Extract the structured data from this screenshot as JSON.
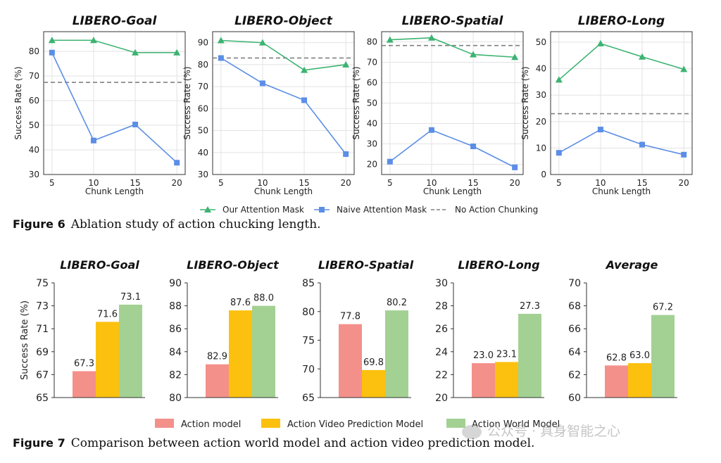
{
  "fig6": {
    "label": "Figure 6",
    "caption": "Ablation study of action chucking length.",
    "legend": [
      {
        "name": "Our Attention Mask",
        "color": "#3cb371",
        "marker": "triangle"
      },
      {
        "name": "Naive Attention Mask",
        "color": "#5b8ee6",
        "marker": "square"
      },
      {
        "name": "No Action Chunking",
        "color": "#808080",
        "marker": "dashed"
      }
    ]
  },
  "fig7": {
    "label": "Figure 7",
    "caption": "Comparison between action world model and action video prediction model.",
    "legend": [
      {
        "name": "Action model",
        "color": "#f4908a"
      },
      {
        "name": "Action Video Prediction Model",
        "color": "#fcc00f"
      },
      {
        "name": "Action World Model",
        "color": "#a3d194"
      }
    ]
  },
  "watermark": "公众号 · 具身智能之心",
  "chart_data": [
    {
      "type": "line",
      "title": "LIBERO-Goal",
      "xlabel": "Chunk Length",
      "ylabel": "Success Rate (%)",
      "x": [
        5,
        10,
        15,
        20
      ],
      "ylim": [
        30,
        88
      ],
      "yticks": [
        30,
        40,
        50,
        60,
        70,
        80
      ],
      "series": [
        {
          "name": "Our Attention Mask",
          "values": [
            84.5,
            84.5,
            79.5,
            79.5
          ]
        },
        {
          "name": "Naive Attention Mask",
          "values": [
            79.5,
            43.8,
            50.3,
            34.8
          ]
        }
      ],
      "baseline": 67.4
    },
    {
      "type": "line",
      "title": "LIBERO-Object",
      "xlabel": "Chunk Length",
      "ylabel": "Success Rate (%)",
      "x": [
        5,
        10,
        15,
        20
      ],
      "ylim": [
        30,
        95
      ],
      "yticks": [
        30,
        40,
        50,
        60,
        70,
        80,
        90
      ],
      "series": [
        {
          "name": "Our Attention Mask",
          "values": [
            91,
            90,
            77.5,
            80
          ]
        },
        {
          "name": "Naive Attention Mask",
          "values": [
            83,
            71.5,
            63.8,
            39.3
          ]
        }
      ],
      "baseline": 83
    },
    {
      "type": "line",
      "title": "LIBERO-Spatial",
      "xlabel": "Chunk Length",
      "ylabel": "Success Rate (%)",
      "x": [
        5,
        10,
        15,
        20
      ],
      "ylim": [
        15,
        85
      ],
      "yticks": [
        20,
        30,
        40,
        50,
        60,
        70,
        80
      ],
      "series": [
        {
          "name": "Our Attention Mask",
          "values": [
            81,
            82,
            73.8,
            72.5
          ]
        },
        {
          "name": "Naive Attention Mask",
          "values": [
            21.3,
            36.8,
            28.8,
            18.5
          ]
        }
      ],
      "baseline": 78.2
    },
    {
      "type": "line",
      "title": "LIBERO-Long",
      "xlabel": "Chunk Length",
      "ylabel": "Success Rate (%)",
      "x": [
        5,
        10,
        15,
        20
      ],
      "ylim": [
        0,
        54
      ],
      "yticks": [
        0,
        10,
        20,
        30,
        40,
        50
      ],
      "series": [
        {
          "name": "Our Attention Mask",
          "values": [
            35.8,
            49.5,
            44.5,
            39.8
          ]
        },
        {
          "name": "Naive Attention Mask",
          "values": [
            8.2,
            17,
            11.3,
            7.5
          ]
        }
      ],
      "baseline": 23
    },
    {
      "type": "bar",
      "title": "LIBERO-Goal",
      "ylabel": "Success Rate (%)",
      "series_names": [
        "Action model",
        "Action Video Prediction Model",
        "Action World Model"
      ],
      "values": [
        67.3,
        71.6,
        73.1
      ],
      "labels": [
        "67.3",
        "71.6",
        "73.1"
      ],
      "ylim": [
        65,
        75
      ],
      "yticks": [
        65,
        67,
        69,
        71,
        73,
        75
      ]
    },
    {
      "type": "bar",
      "title": "LIBERO-Object",
      "values": [
        82.9,
        87.6,
        88.0
      ],
      "labels": [
        "82.9",
        "87.6",
        "88.0"
      ],
      "ylim": [
        80,
        90
      ],
      "yticks": [
        80,
        82,
        84,
        86,
        88,
        90
      ]
    },
    {
      "type": "bar",
      "title": "LIBERO-Spatial",
      "values": [
        77.8,
        69.8,
        80.2
      ],
      "labels": [
        "77.8",
        "69.8",
        "80.2"
      ],
      "ylim": [
        65,
        85
      ],
      "yticks": [
        65,
        70,
        75,
        80,
        85
      ]
    },
    {
      "type": "bar",
      "title": "LIBERO-Long",
      "values": [
        23.0,
        23.1,
        27.3
      ],
      "labels": [
        "23.0",
        "23.1",
        "27.3"
      ],
      "ylim": [
        20,
        30
      ],
      "yticks": [
        20,
        22,
        24,
        26,
        28,
        30
      ]
    },
    {
      "type": "bar",
      "title": "Average",
      "values": [
        62.8,
        63.0,
        67.2
      ],
      "labels": [
        "62.8",
        "63.0",
        "67.2"
      ],
      "ylim": [
        60,
        70
      ],
      "yticks": [
        60,
        62,
        64,
        66,
        68,
        70
      ]
    }
  ]
}
